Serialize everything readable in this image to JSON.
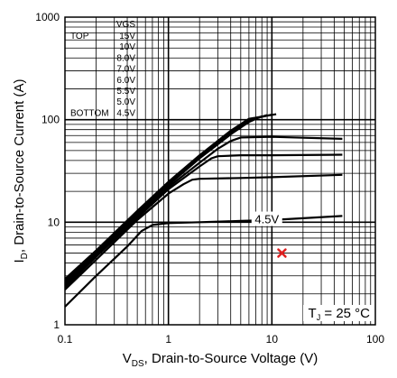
{
  "chart_data": {
    "type": "line",
    "xscale": "log",
    "yscale": "log",
    "xlim": [
      0.1,
      100
    ],
    "ylim": [
      1,
      1000
    ],
    "grid": true,
    "x_ticks": [
      "0.1",
      "1",
      "10",
      "100"
    ],
    "y_ticks": [
      "1",
      "10",
      "100",
      "1000"
    ],
    "xlabel": {
      "main": "V",
      "sub": "DS",
      "rest": ", Drain-to-Source Voltage (V)"
    },
    "ylabel": {
      "main": "I",
      "sub": "D",
      "rest": ",  Drain-to-Source Current (A)"
    },
    "legend": {
      "placement": "top-left",
      "header": "VGS",
      "top_label": "TOP",
      "bottom_label": "BOTTOM",
      "entries": [
        "15V",
        "10V",
        "8.0V",
        "7.0V",
        "6.0V",
        "5.5V",
        "5.0V",
        "4.5V"
      ]
    },
    "annotation": {
      "main": "T",
      "sub": "J",
      "rest": " = 25 °C"
    },
    "marker": {
      "x": 12.5,
      "y": 5.0,
      "color": "#e02020"
    },
    "curve_label": {
      "text": "4.5V",
      "x": 10.5,
      "y": 10.8
    },
    "series": [
      {
        "x": [
          0.1,
          0.2,
          0.4,
          0.55,
          0.7,
          1.0,
          2.0,
          5.0,
          10.0,
          48.0
        ],
        "y": [
          1.5,
          3.0,
          5.8,
          8.2,
          9.4,
          9.8,
          10.0,
          10.3,
          10.5,
          11.5
        ]
      },
      {
        "x": [
          0.1,
          0.2,
          0.5,
          1.0,
          1.4,
          1.7,
          2.0,
          5.0,
          10.0,
          48.0
        ],
        "y": [
          2.2,
          4.3,
          10.5,
          19.0,
          23.5,
          26.0,
          26.5,
          27.0,
          27.5,
          29.0
        ]
      },
      {
        "x": [
          0.1,
          0.2,
          0.5,
          1.0,
          2.0,
          2.6,
          3.0,
          5.0,
          10.0,
          48.0
        ],
        "y": [
          2.3,
          4.6,
          11.0,
          21.0,
          35.0,
          42.0,
          44.0,
          45.0,
          45.0,
          45.5
        ]
      },
      {
        "x": [
          0.1,
          0.2,
          0.5,
          1.0,
          2.0,
          3.0,
          4.0,
          5.0,
          10.0,
          48.0
        ],
        "y": [
          2.4,
          4.8,
          11.5,
          22.0,
          38.0,
          52.0,
          62.0,
          67.0,
          68.0,
          65.0
        ]
      },
      {
        "x": [
          0.1,
          0.2,
          0.5,
          1.0,
          2.0,
          4.0,
          6.0,
          8.0
        ],
        "y": [
          2.5,
          5.0,
          12.0,
          23.0,
          42.0,
          72.0,
          95.0,
          108.0
        ]
      },
      {
        "x": [
          0.1,
          0.2,
          0.5,
          1.0,
          2.0,
          4.0,
          6.0,
          9.0
        ],
        "y": [
          2.6,
          5.1,
          12.3,
          23.6,
          43.0,
          74.0,
          98.0,
          111.0
        ]
      },
      {
        "x": [
          0.1,
          0.2,
          0.5,
          1.0,
          2.0,
          4.0,
          6.0,
          10.0
        ],
        "y": [
          2.7,
          5.2,
          12.6,
          24.2,
          44.0,
          76.0,
          100.0,
          112.0
        ]
      },
      {
        "x": [
          0.1,
          0.2,
          0.5,
          1.0,
          2.0,
          4.0,
          6.0,
          11.0
        ],
        "y": [
          2.8,
          5.3,
          12.9,
          24.8,
          45.0,
          78.0,
          102.0,
          113.0
        ]
      }
    ]
  }
}
